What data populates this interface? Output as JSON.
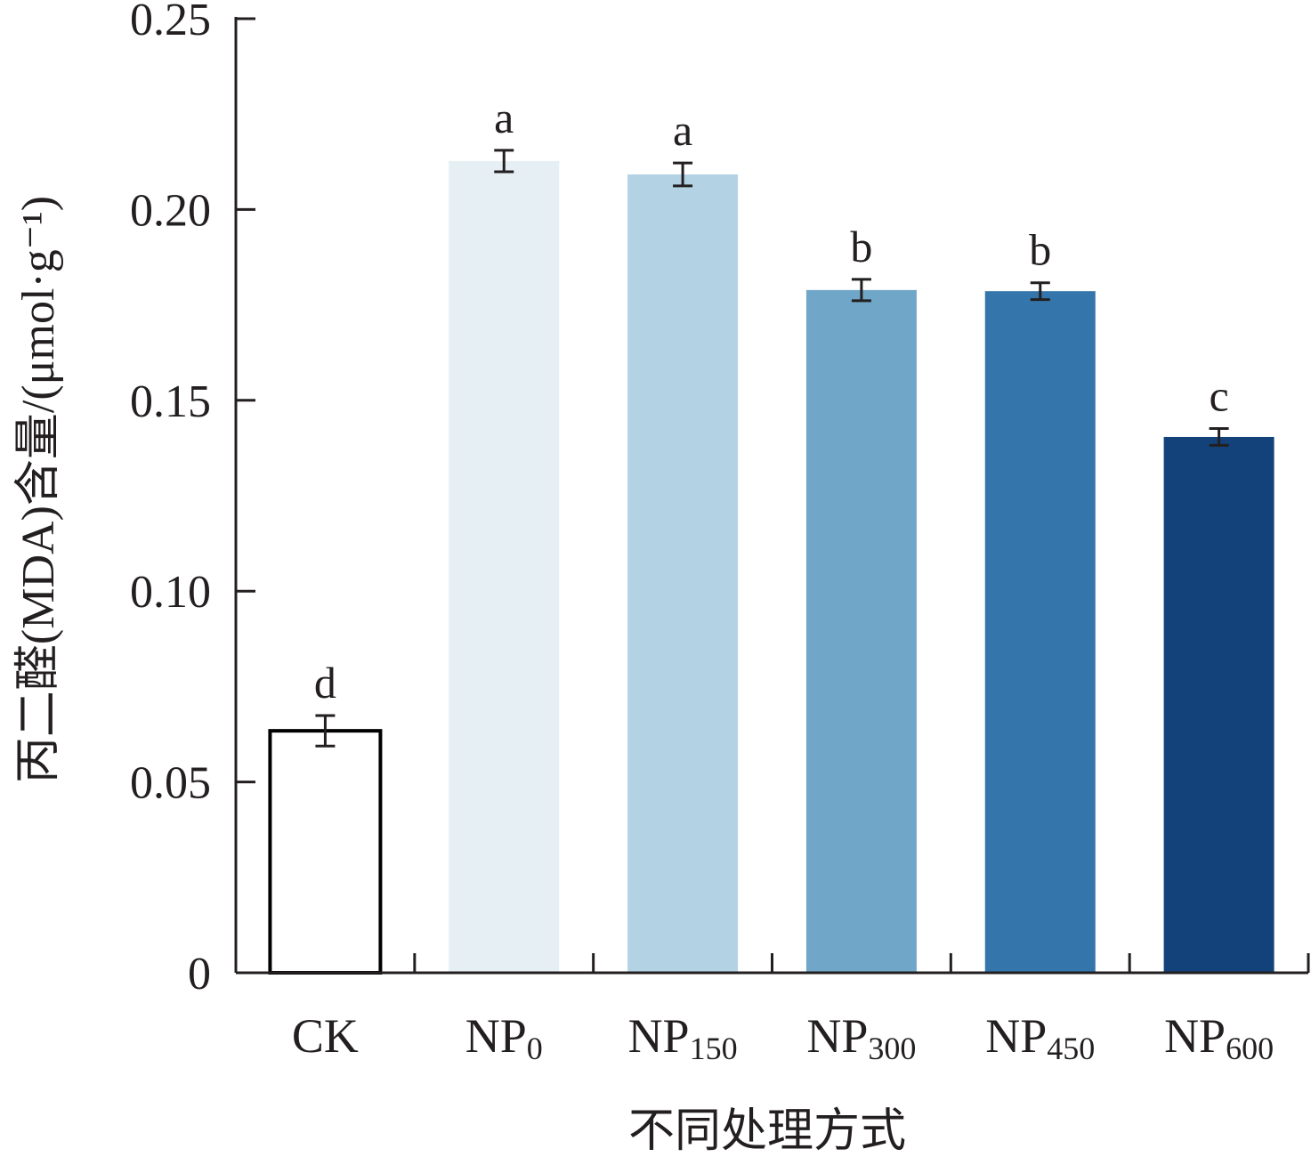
{
  "chart_data": {
    "type": "bar",
    "title": "",
    "xlabel": "不同处理方式",
    "ylabel": "丙二醛(MDA)含量/(μmol·g⁻¹)",
    "ylim": [
      0,
      0.25
    ],
    "yticks": [
      "0",
      "0.05",
      "0.10",
      "0.15",
      "0.20",
      "0.25"
    ],
    "categories": [
      {
        "main": "CK",
        "sub": ""
      },
      {
        "main": "NP",
        "sub": "0"
      },
      {
        "main": "NP",
        "sub": "150"
      },
      {
        "main": "NP",
        "sub": "300"
      },
      {
        "main": "NP",
        "sub": "450"
      },
      {
        "main": "NP",
        "sub": "600"
      }
    ],
    "values": [
      0.0634,
      0.2127,
      0.2092,
      0.1789,
      0.1786,
      0.1404
    ],
    "errors": [
      0.004,
      0.0028,
      0.003,
      0.0028,
      0.0022,
      0.0022
    ],
    "significance_letters": [
      "d",
      "a",
      "a",
      "b",
      "b",
      "c"
    ],
    "colors": [
      "#ffffff",
      "#e6eff4",
      "#b3d3e4",
      "#70a7c9",
      "#3475ab",
      "#13427a"
    ],
    "grid": false,
    "legend": "none"
  }
}
